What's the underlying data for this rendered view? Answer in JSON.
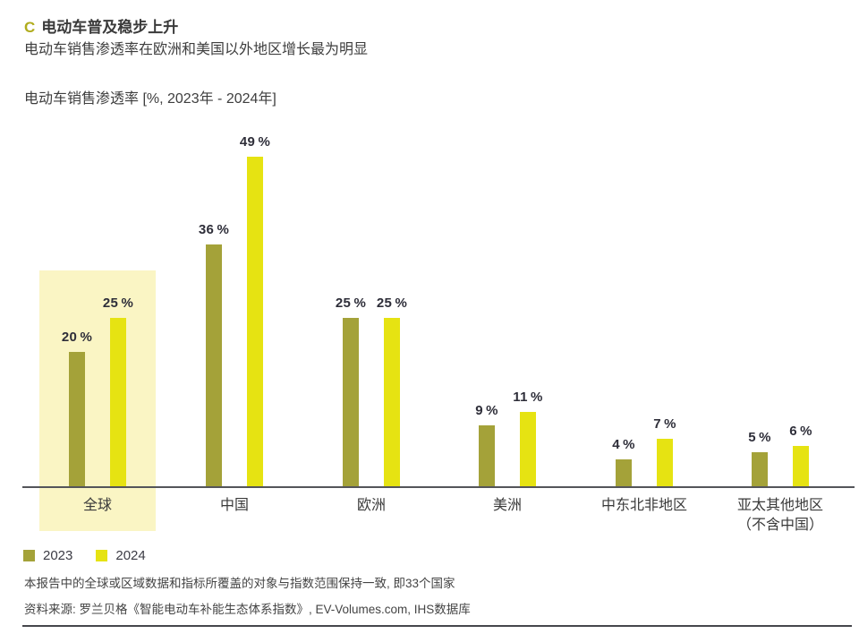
{
  "header": {
    "marker": "C",
    "title": "电动车普及稳步上升",
    "subtitle": "电动车销售渗透率在欧洲和美国以外地区增长最为明显",
    "axis_title": "电动车销售渗透率 [%, 2023年 - 2024年]"
  },
  "chart_data": {
    "type": "bar",
    "title": "电动车销售渗透率 [%, 2023年 - 2024年]",
    "unit": "%",
    "categories": [
      "全球",
      "中国",
      "欧洲",
      "美洲",
      "中东北非地区",
      "亚太其他地区\n（不含中国）"
    ],
    "series": [
      {
        "name": "2023",
        "color": "#a4a239",
        "values": [
          20,
          36,
          25,
          9,
          4,
          5
        ]
      },
      {
        "name": "2024",
        "color": "#e6e312",
        "values": [
          25,
          49,
          25,
          11,
          7,
          6
        ]
      }
    ],
    "highlighted_category": "全球",
    "highlight_color": "#faf5c4",
    "ylim": [
      0,
      50
    ],
    "grid": false,
    "legend_position": "bottom-left",
    "value_label_format": "{value} %"
  },
  "footnotes": {
    "note": "本报告中的全球或区域数据和指标所覆盖的对象与指数范围保持一致, 即33个国家",
    "source": "资料来源: 罗兰贝格《智能电动车补能生态体系指数》, EV-Volumes.com, IHS数据库"
  },
  "colors": {
    "accent_olive": "#a4a239",
    "accent_yellow": "#e6e312",
    "marker_color": "#b0ac1d",
    "highlight_band": "#faf5c4",
    "text_dark": "#3a3a3a",
    "axis_line": "#54555a"
  }
}
